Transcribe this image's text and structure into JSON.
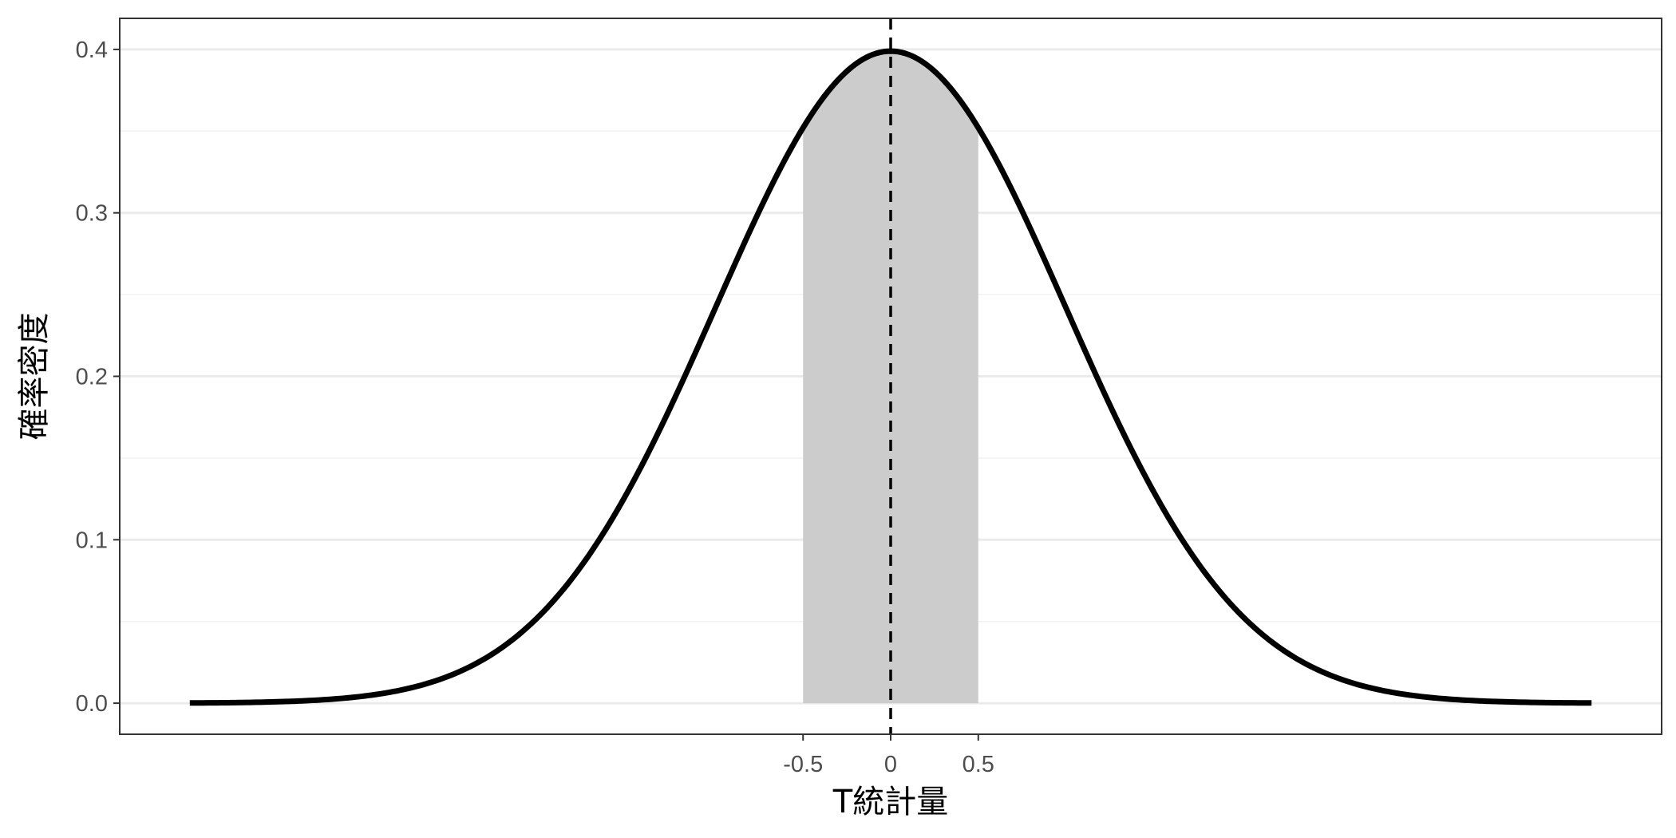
{
  "chart_data": {
    "type": "area",
    "title": "",
    "xlabel": "T統計量",
    "ylabel": "確率密度",
    "xlim": [
      -4.4,
      4.4
    ],
    "ylim": [
      -0.019,
      0.419
    ],
    "grid": true,
    "legend": "none",
    "colors": {
      "curve": "#000000",
      "shade": "#cccccc",
      "grid_major": "#ebebeb",
      "grid_minor": "#f2f2f2",
      "panel_border": "#333333",
      "tick_text": "#4d4d4d"
    },
    "x_ticks": [
      {
        "value": -0.5,
        "label": "-0.5"
      },
      {
        "value": 0,
        "label": "0"
      },
      {
        "value": 0.5,
        "label": "0.5"
      }
    ],
    "y_ticks": [
      {
        "value": 0.0,
        "label": "0.0"
      },
      {
        "value": 0.1,
        "label": "0.1"
      },
      {
        "value": 0.2,
        "label": "0.2"
      },
      {
        "value": 0.3,
        "label": "0.3"
      },
      {
        "value": 0.4,
        "label": "0.4"
      }
    ],
    "y_minor": [
      0.05,
      0.15,
      0.25,
      0.35
    ],
    "series": [
      {
        "style": "solid",
        "x": [
          -4.0,
          -3.5,
          -3.0,
          -2.5,
          -2.0,
          -1.5,
          -1.0,
          -0.75,
          -0.5,
          -0.25,
          0.0,
          0.25,
          0.5,
          0.75,
          1.0,
          1.5,
          2.0,
          2.5,
          3.0,
          3.5,
          4.0
        ],
        "y": [
          0.0001,
          0.0009,
          0.0044,
          0.0175,
          0.054,
          0.1295,
          0.242,
          0.3011,
          0.3521,
          0.3867,
          0.3989,
          0.3867,
          0.3521,
          0.3011,
          0.242,
          0.1295,
          0.054,
          0.0175,
          0.0044,
          0.0009,
          0.0001
        ]
      }
    ],
    "shaded_region": {
      "from": -0.5,
      "to": 0.5
    },
    "reference_line": {
      "x": 0,
      "style": "dashed"
    }
  }
}
